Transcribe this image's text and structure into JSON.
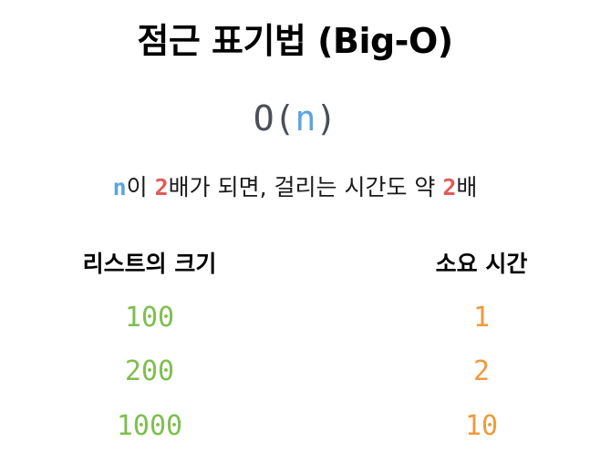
{
  "title": "점근 표기법 (Big-O)",
  "formula": {
    "prefix": "O(",
    "variable": "n",
    "suffix": ")"
  },
  "description": {
    "part1": "n",
    "part2": "이 ",
    "part3": "2",
    "part4": "배가 되면, 걸리는 시간도 약 ",
    "part5": "2",
    "part6": "배"
  },
  "table": {
    "headers": [
      "리스트의 크기",
      "소요 시간"
    ],
    "rows": [
      {
        "size": "100",
        "time": "1"
      },
      {
        "size": "200",
        "time": "2"
      },
      {
        "size": "1000",
        "time": "10"
      }
    ]
  },
  "colors": {
    "variable": "#5aa4e0",
    "highlight": "#e25b57",
    "size_values": "#7dbf4f",
    "time_values": "#ef9a3c"
  }
}
